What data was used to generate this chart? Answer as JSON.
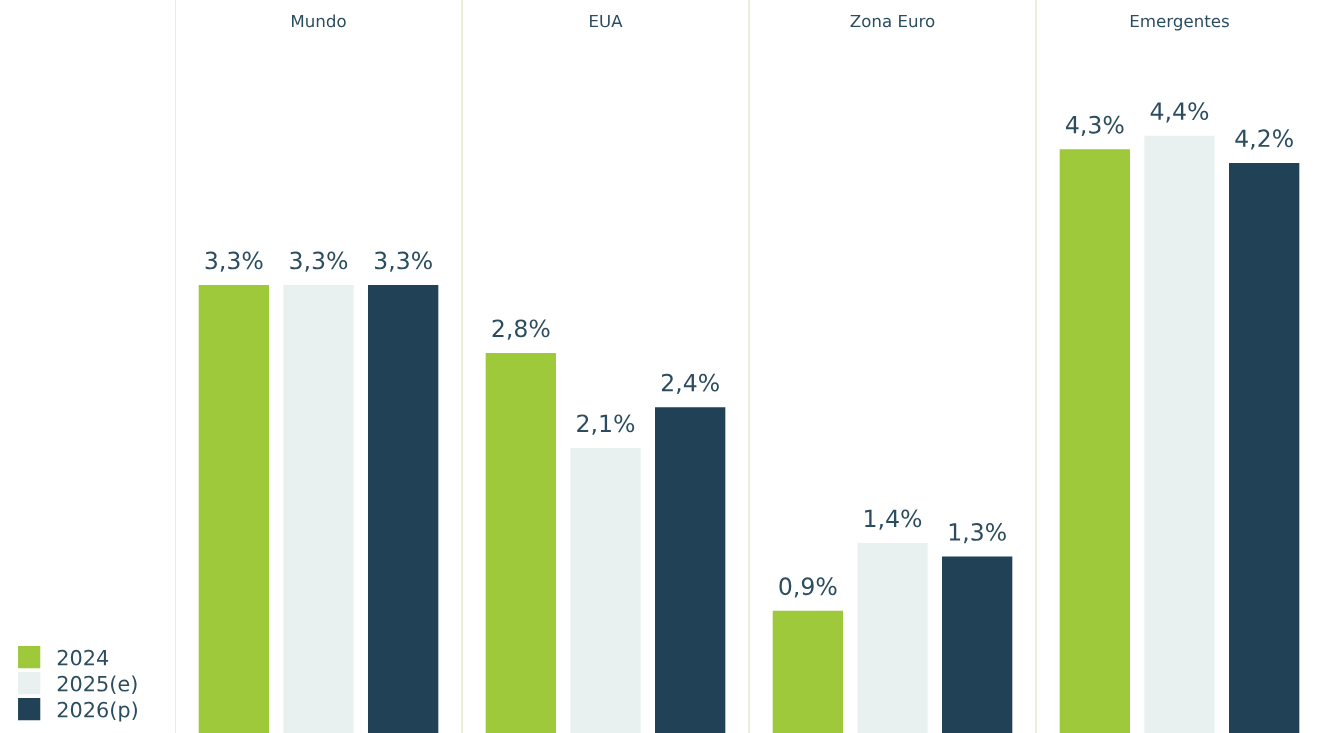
{
  "chart_data": {
    "type": "bar",
    "categories": [
      "Mundo",
      "EUA",
      "Zona Euro",
      "Emergentes"
    ],
    "series": [
      {
        "name": "2024",
        "color": "#9dc93b",
        "values": [
          3.3,
          2.8,
          0.9,
          4.3
        ],
        "value_labels": [
          "3,3%",
          "2,8%",
          "0,9%",
          "4,3%"
        ]
      },
      {
        "name": "2025(e)",
        "color": "#e8f1f0",
        "values": [
          3.3,
          2.1,
          1.4,
          4.4
        ],
        "value_labels": [
          "3,3%",
          "2,1%",
          "1,4%",
          "4,4%"
        ]
      },
      {
        "name": "2026(p)",
        "color": "#214256",
        "values": [
          3.3,
          2.4,
          1.3,
          4.2
        ],
        "value_labels": [
          "3,3%",
          "2,4%",
          "1,3%",
          "4,2%"
        ]
      }
    ],
    "ylim": [
      0,
      5.4
    ],
    "legend": "bottom left"
  }
}
